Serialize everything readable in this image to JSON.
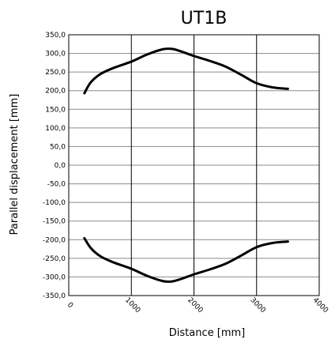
{
  "chart_data": {
    "type": "line",
    "title": "UT1B",
    "xlabel": "Distance  [mm]",
    "ylabel": "Parallel displacement [mm]",
    "xlim": [
      0,
      4000
    ],
    "ylim": [
      -350,
      350
    ],
    "xticks": [
      0,
      1000,
      2000,
      3000,
      4000
    ],
    "yticks": [
      350,
      300,
      250,
      200,
      150,
      100,
      50,
      0,
      -50,
      -100,
      -150,
      -200,
      -250,
      -300,
      -350
    ],
    "ytick_labels": [
      "350,0",
      "300,0",
      "250,0",
      "200,0",
      "150,0",
      "100,0",
      "50,0",
      "0,0",
      "-50,0",
      "-100,0",
      "-150,0",
      "-200,0",
      "-250,0",
      "-300,0",
      "-350,0"
    ],
    "xtick_labels": [
      "0",
      "1000",
      "2000",
      "3000",
      "4000"
    ],
    "grid": true,
    "legend": "none",
    "series": [
      {
        "x": [
          250,
          350,
          500,
          700,
          1000,
          1250,
          1500,
          1650,
          1800,
          2000,
          2250,
          2500,
          2750,
          3000,
          3250,
          3500
        ],
        "y": [
          193,
          222,
          244,
          260,
          278,
          297,
          311,
          312,
          305,
          293,
          280,
          265,
          243,
          220,
          209,
          205
        ]
      },
      {
        "x": [
          250,
          350,
          500,
          700,
          1000,
          1250,
          1500,
          1650,
          1800,
          2000,
          2250,
          2500,
          2750,
          3000,
          3250,
          3500
        ],
        "y": [
          -196,
          -222,
          -244,
          -260,
          -278,
          -297,
          -311,
          -312,
          -305,
          -293,
          -280,
          -265,
          -243,
          -220,
          -209,
          -205
        ]
      }
    ]
  }
}
